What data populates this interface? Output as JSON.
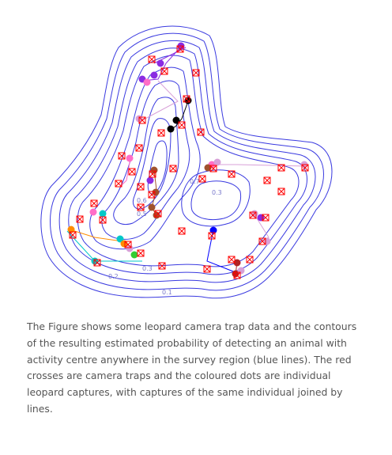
{
  "figure": {
    "contour_labels": [
      "0.1",
      "0.2",
      "0.3",
      "0.3",
      "0.5",
      "0.6",
      "0.7"
    ],
    "colors": {
      "contour": "#3a3ae0",
      "trap_cross": "#ff0000",
      "leopards": [
        "#8a2be2",
        "#000000",
        "#a0522d",
        "#ff6ec7",
        "#00c8c8",
        "#ff8c00",
        "#32cd32",
        "#0000ff",
        "#b22222",
        "#d8a0d8"
      ]
    }
  },
  "caption": {
    "text": "The Figure shows some leopard camera trap data and the contours of the resulting estimated probability of detecting an animal with activity centre anywhere in the survey region (blue lines). The red crosses are camera traps and the coloured dots are individual leopard captures, with captures of the same individual joined by lines."
  }
}
